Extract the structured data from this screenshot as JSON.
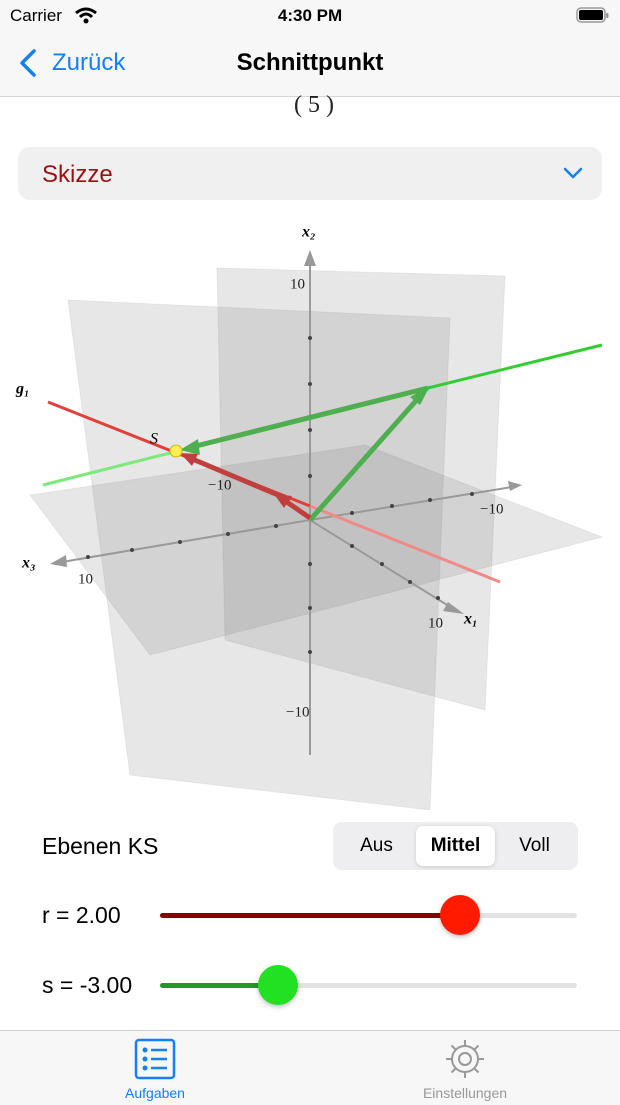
{
  "status_bar": {
    "carrier": "Carrier",
    "time": "4:30 PM"
  },
  "nav": {
    "back": "Zurück",
    "title": "Schnittpunkt"
  },
  "formula_fragment": "5",
  "section": {
    "title": "Skizze"
  },
  "sketch": {
    "axis_labels": {
      "x1": "x₁",
      "x2": "x₂",
      "x3": "x₃"
    },
    "line_label": "g₁",
    "point_label": "S",
    "tick_labels": {
      "x2_pos": "10",
      "x2_neg": "−10",
      "x1_pos": "10",
      "x1_neg": "−10",
      "x3_pos": "10",
      "x3_neg": "−10"
    }
  },
  "controls": {
    "planes_label": "Ebenen KS",
    "planes_options": [
      "Aus",
      "Mittel",
      "Voll"
    ],
    "planes_selected": "Mittel",
    "r_label": "r = 2.00",
    "s_label": "s = -3.00"
  },
  "tabs": [
    {
      "label": "Aufgaben",
      "active": true
    },
    {
      "label": "Einstellungen",
      "active": false
    }
  ]
}
